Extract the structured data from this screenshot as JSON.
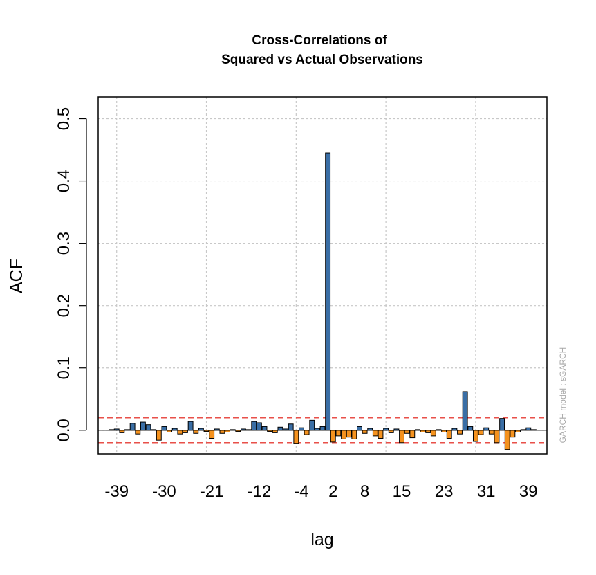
{
  "chart_data": {
    "type": "bar",
    "title_line1": "Cross-Correlations of",
    "title_line2": "Squared vs Actual Observations",
    "xlabel": "lag",
    "ylabel": "ACF",
    "watermark": "GARCH model :  sGARCH",
    "xlim": [
      -42.5,
      42.5
    ],
    "ylim": [
      -0.038,
      0.535
    ],
    "x_ticks": [
      -39,
      -30,
      -21,
      -12,
      -4,
      2,
      8,
      15,
      23,
      31,
      39
    ],
    "x_tick_labels": [
      "-39",
      "-30",
      "-21",
      "-12",
      "-4",
      "2",
      "8",
      "15",
      "23",
      "31",
      "39"
    ],
    "y_ticks": [
      0.0,
      0.1,
      0.2,
      0.3,
      0.4,
      0.5
    ],
    "y_tick_labels": [
      "0.0",
      "0.1",
      "0.2",
      "0.3",
      "0.4",
      "0.5"
    ],
    "x_grid": [
      -39,
      -22,
      -5,
      12,
      29
    ],
    "confidence_band": 0.02,
    "grid": true,
    "colors": {
      "positive": "#3a6ea5",
      "negative": "#f5921e",
      "band": "#e8504a",
      "grid": "#c8c8c8"
    },
    "lags": [
      -40,
      -39,
      -38,
      -37,
      -36,
      -35,
      -34,
      -33,
      -32,
      -31,
      -30,
      -29,
      -28,
      -27,
      -26,
      -25,
      -24,
      -23,
      -22,
      -21,
      -20,
      -19,
      -18,
      -17,
      -16,
      -15,
      -14,
      -13,
      -12,
      -11,
      -10,
      -9,
      -8,
      -7,
      -6,
      -5,
      -4,
      -3,
      -2,
      -1,
      0,
      1,
      2,
      3,
      4,
      5,
      6,
      7,
      8,
      9,
      10,
      11,
      12,
      13,
      14,
      15,
      16,
      17,
      18,
      19,
      20,
      21,
      22,
      23,
      24,
      25,
      26,
      27,
      28,
      29,
      30,
      31,
      32,
      33,
      34,
      35,
      36,
      37,
      38,
      39,
      40
    ],
    "values": [
      0.001,
      0.002,
      -0.004,
      0.001,
      0.011,
      -0.006,
      0.013,
      0.009,
      0.001,
      -0.016,
      0.006,
      -0.003,
      0.003,
      -0.006,
      -0.004,
      0.014,
      -0.005,
      0.003,
      -0.002,
      -0.013,
      0.002,
      -0.005,
      -0.003,
      0.001,
      -0.002,
      0.002,
      0.001,
      0.014,
      0.012,
      0.006,
      -0.002,
      -0.004,
      0.005,
      0.002,
      0.01,
      -0.021,
      0.004,
      -0.007,
      0.016,
      0.003,
      0.006,
      0.445,
      -0.019,
      -0.009,
      -0.014,
      -0.011,
      -0.014,
      0.006,
      -0.005,
      0.003,
      -0.009,
      -0.013,
      0.003,
      -0.004,
      0.002,
      -0.02,
      -0.005,
      -0.012,
      0.001,
      -0.003,
      -0.004,
      -0.009,
      0.001,
      -0.003,
      -0.013,
      0.003,
      -0.006,
      0.062,
      0.006,
      -0.018,
      -0.007,
      0.004,
      -0.006,
      -0.02,
      0.019,
      -0.031,
      -0.011,
      -0.003,
      0.001,
      0.004,
      0.001
    ]
  }
}
